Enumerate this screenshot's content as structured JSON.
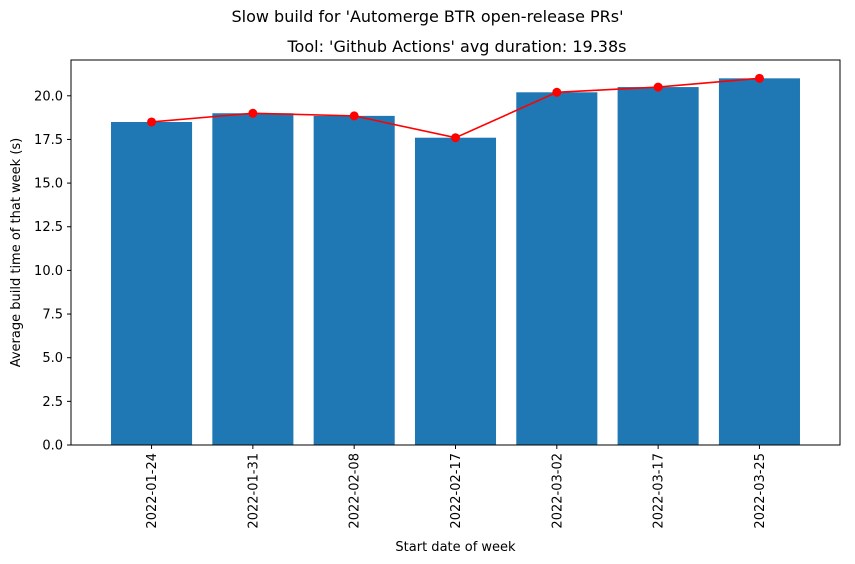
{
  "suptitle": "Slow build for 'Automerge BTR open-release PRs'",
  "chart_data": {
    "type": "bar",
    "title": "Tool: 'Github Actions' avg duration: 19.38s",
    "xlabel": "Start date of week",
    "ylabel": "Average build time of that week (s)",
    "categories": [
      "2022-01-24",
      "2022-01-31",
      "2022-02-08",
      "2022-02-17",
      "2022-03-02",
      "2022-03-17",
      "2022-03-25"
    ],
    "values": [
      18.5,
      19.0,
      18.85,
      17.6,
      20.2,
      20.5,
      21.0
    ],
    "line_values": [
      18.5,
      19.0,
      18.85,
      17.6,
      20.2,
      20.5,
      21.0
    ],
    "ylim": [
      0,
      22.05
    ],
    "yticks": [
      0.0,
      2.5,
      5.0,
      7.5,
      10.0,
      12.5,
      15.0,
      17.5,
      20.0
    ],
    "bar_color": "#1f77b4",
    "line_color": "#ff0000",
    "grid": false,
    "xtick_rotation": 90
  }
}
